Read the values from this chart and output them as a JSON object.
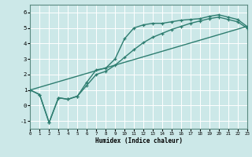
{
  "xlabel": "Humidex (Indice chaleur)",
  "bg_color": "#cce8e8",
  "grid_color": "#ffffff",
  "line_color": "#2e7d70",
  "xlim": [
    0,
    23
  ],
  "ylim": [
    -1.5,
    6.5
  ],
  "xticks": [
    0,
    1,
    2,
    3,
    4,
    5,
    6,
    7,
    8,
    9,
    10,
    11,
    12,
    13,
    14,
    15,
    16,
    17,
    18,
    19,
    20,
    21,
    22,
    23
  ],
  "yticks": [
    -1,
    0,
    1,
    2,
    3,
    4,
    5,
    6
  ],
  "curve1_x": [
    0,
    1,
    2,
    3,
    4,
    5,
    6,
    7,
    8,
    9,
    10,
    11,
    12,
    13,
    14,
    15,
    16,
    17,
    18,
    19,
    20,
    21,
    22,
    23
  ],
  "curve1_y": [
    1.0,
    0.7,
    -1.1,
    0.5,
    0.4,
    0.6,
    1.5,
    2.3,
    2.4,
    3.0,
    4.3,
    5.0,
    5.2,
    5.3,
    5.3,
    5.4,
    5.5,
    5.55,
    5.6,
    5.75,
    5.85,
    5.7,
    5.55,
    5.1
  ],
  "curve2_x": [
    0,
    1,
    2,
    3,
    4,
    5,
    6,
    7,
    8,
    9,
    10,
    11,
    12,
    13,
    14,
    15,
    16,
    17,
    18,
    19,
    20,
    21,
    22,
    23
  ],
  "curve2_y": [
    1.0,
    0.7,
    -1.1,
    0.5,
    0.4,
    0.6,
    1.3,
    2.0,
    2.2,
    2.6,
    3.1,
    3.6,
    4.05,
    4.4,
    4.65,
    4.9,
    5.1,
    5.3,
    5.45,
    5.6,
    5.7,
    5.55,
    5.4,
    5.0
  ],
  "curve3_x": [
    0,
    23
  ],
  "curve3_y": [
    1.0,
    5.1
  ],
  "xlabel_fontsize": 5.5,
  "tick_fontsize_x": 4.2,
  "tick_fontsize_y": 5.2
}
